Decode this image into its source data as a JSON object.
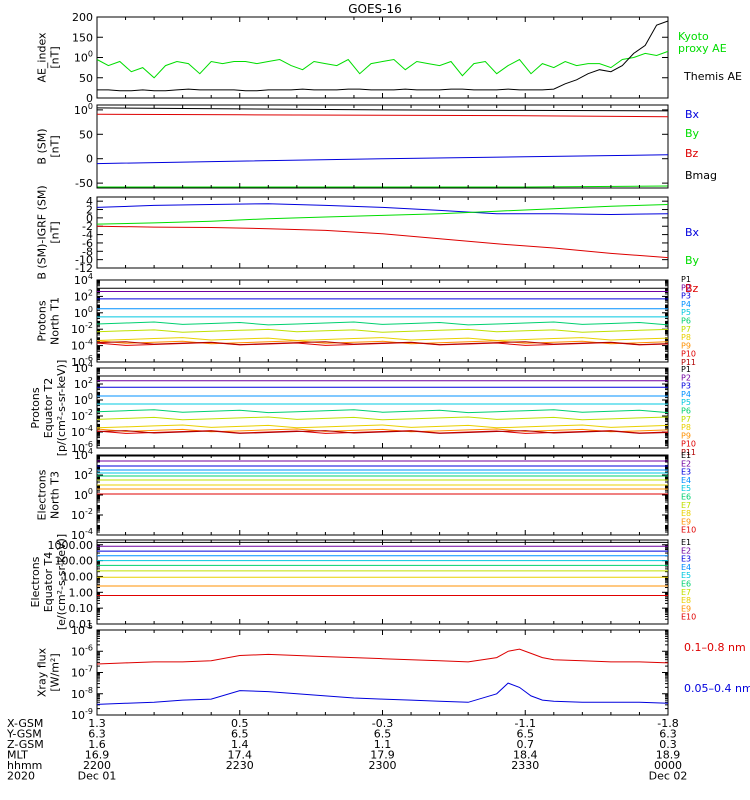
{
  "title": "GOES-16",
  "colors": {
    "black": "#000000",
    "green": "#00dd00",
    "red": "#dd0000",
    "blue": "#0000dd",
    "p1": "#000000",
    "p2": "#7000a0",
    "p3": "#0000dd",
    "p4": "#0090ff",
    "p5": "#00c8e0",
    "p6": "#00d070",
    "p7": "#c0e000",
    "p8": "#e8d000",
    "p9": "#ff9000",
    "p10": "#e00000",
    "p11": "#b00000"
  },
  "chart_data": [
    {
      "id": "ae",
      "type": "line",
      "ylabel": [
        "AE_index",
        "[nT]"
      ],
      "ylim": [
        0,
        200
      ],
      "yticks": [
        "0",
        "50",
        "100",
        "150",
        "200"
      ],
      "ytick_values": [
        0,
        50,
        100,
        150,
        200
      ],
      "x": [
        0,
        0.02,
        0.04,
        0.06,
        0.08,
        0.1,
        0.12,
        0.14,
        0.16,
        0.18,
        0.2,
        0.22,
        0.24,
        0.26,
        0.28,
        0.3,
        0.32,
        0.34,
        0.36,
        0.38,
        0.4,
        0.42,
        0.44,
        0.46,
        0.48,
        0.5,
        0.52,
        0.54,
        0.56,
        0.58,
        0.6,
        0.62,
        0.64,
        0.66,
        0.68,
        0.7,
        0.72,
        0.74,
        0.76,
        0.78,
        0.8,
        0.82,
        0.84,
        0.86,
        0.88,
        0.9,
        0.92,
        0.94,
        0.96,
        0.98,
        1
      ],
      "series": [
        {
          "name": "Kyoto proxy AE",
          "color": "green",
          "values": [
            95,
            80,
            90,
            65,
            75,
            50,
            80,
            90,
            85,
            60,
            90,
            85,
            90,
            90,
            85,
            90,
            95,
            80,
            70,
            90,
            85,
            80,
            95,
            60,
            85,
            90,
            95,
            70,
            90,
            85,
            80,
            90,
            55,
            85,
            90,
            60,
            80,
            95,
            60,
            85,
            75,
            90,
            80,
            85,
            85,
            75,
            95,
            100,
            110,
            105,
            115
          ]
        },
        {
          "name": "Themis AE",
          "color": "black",
          "values": [
            20,
            20,
            18,
            18,
            20,
            18,
            18,
            20,
            22,
            20,
            20,
            20,
            20,
            18,
            18,
            20,
            20,
            20,
            22,
            20,
            20,
            20,
            22,
            22,
            20,
            20,
            20,
            22,
            20,
            20,
            20,
            22,
            22,
            20,
            20,
            20,
            22,
            20,
            20,
            20,
            22,
            35,
            45,
            60,
            70,
            65,
            80,
            110,
            130,
            180,
            190
          ]
        }
      ]
    },
    {
      "id": "bsm",
      "type": "line",
      "ylabel": [
        "B (SM)",
        "[nT]"
      ],
      "ylim": [
        -60,
        110
      ],
      "yticks": [
        "-50",
        "0",
        "50",
        "100"
      ],
      "ytick_values": [
        -50,
        0,
        50,
        100
      ],
      "x": [
        0,
        0.25,
        0.5,
        0.75,
        1
      ],
      "series": [
        {
          "name": "Bx",
          "color": "blue",
          "values": [
            -10,
            -5,
            0,
            4,
            8
          ]
        },
        {
          "name": "By",
          "color": "green",
          "values": [
            -58,
            -58,
            -58,
            -58,
            -56
          ]
        },
        {
          "name": "Bz",
          "color": "red",
          "values": [
            91,
            90,
            89,
            88,
            86
          ]
        },
        {
          "name": "Bmag",
          "color": "black",
          "values": [
            104,
            102,
            100,
            99,
            98
          ]
        }
      ]
    },
    {
      "id": "bigrf",
      "type": "line",
      "ylabel": [
        "B (SM)-IGRF (SM)",
        "[nT]"
      ],
      "ylim": [
        -12,
        5
      ],
      "yticks": [
        "-12",
        "-10",
        "-8",
        "-6",
        "-4",
        "-2",
        "0",
        "2",
        "4"
      ],
      "ytick_values": [
        -12,
        -10,
        -8,
        -6,
        -4,
        -2,
        0,
        2,
        4
      ],
      "x": [
        0,
        0.1,
        0.2,
        0.3,
        0.4,
        0.5,
        0.6,
        0.7,
        0.8,
        0.9,
        1
      ],
      "series": [
        {
          "name": "Bx",
          "color": "blue",
          "values": [
            2.5,
            3.0,
            3.2,
            3.4,
            3.0,
            2.5,
            1.8,
            1.0,
            1.0,
            0.8,
            1.0
          ]
        },
        {
          "name": "By",
          "color": "green",
          "values": [
            -1.5,
            -1.2,
            -0.8,
            -0.2,
            0.2,
            0.6,
            1.0,
            1.6,
            2.2,
            2.8,
            3.2
          ]
        },
        {
          "name": "Bz",
          "color": "red",
          "values": [
            -2.0,
            -2.2,
            -2.3,
            -2.6,
            -3.0,
            -3.8,
            -5.0,
            -6.2,
            -7.2,
            -8.5,
            -9.5
          ]
        }
      ]
    },
    {
      "id": "pt1",
      "type": "line",
      "log": true,
      "ylabel": [
        "Protons",
        "North T1"
      ],
      "ylim_exp": [
        -6,
        4
      ],
      "yticks": [
        "10-6",
        "10-4",
        "10-2",
        "100",
        "102",
        "104"
      ],
      "tick_exps": [
        -6,
        -4,
        -2,
        0,
        2,
        4
      ],
      "series": [
        {
          "name": "P1",
          "color": "p1",
          "value": 3.0
        },
        {
          "name": "P2",
          "color": "p2",
          "value": 2.6
        },
        {
          "name": "P3",
          "color": "p3",
          "value": 1.7
        },
        {
          "name": "P4",
          "color": "p4",
          "value": 0.5
        },
        {
          "name": "P5",
          "color": "p5",
          "value": -0.5
        },
        {
          "name": "P6",
          "color": "p6",
          "value": -1.3
        },
        {
          "name": "P7",
          "color": "p7",
          "value": -2.2
        },
        {
          "name": "P8",
          "color": "p8",
          "value": -3.2
        },
        {
          "name": "P9",
          "color": "p9",
          "value": -3.6
        },
        {
          "name": "P10",
          "color": "p10",
          "value": -3.8
        },
        {
          "name": "P11",
          "color": "p11",
          "value": -3.7
        }
      ]
    },
    {
      "id": "pt2",
      "type": "line",
      "log": true,
      "ylabel": [
        "Protons",
        "Equator T2",
        "[p/(cm²-s-sr-keV)]"
      ],
      "ylim_exp": [
        -6,
        4
      ],
      "yticks": [
        "10-6",
        "10-4",
        "10-2",
        "100",
        "102",
        "104"
      ],
      "tick_exps": [
        -6,
        -4,
        -2,
        0,
        2,
        4
      ],
      "series": [
        {
          "name": "P1",
          "color": "p1",
          "value": 3.0
        },
        {
          "name": "P2",
          "color": "p2",
          "value": 2.4
        },
        {
          "name": "P3",
          "color": "p3",
          "value": 1.6
        },
        {
          "name": "P4",
          "color": "p4",
          "value": 0.5
        },
        {
          "name": "P5",
          "color": "p5",
          "value": -0.5
        },
        {
          "name": "P6",
          "color": "p6",
          "value": -1.4
        },
        {
          "name": "P7",
          "color": "p7",
          "value": -2.3
        },
        {
          "name": "P8",
          "color": "p8",
          "value": -3.3
        },
        {
          "name": "P9",
          "color": "p9",
          "value": -3.8
        },
        {
          "name": "P10",
          "color": "p10",
          "value": -4.0
        },
        {
          "name": "P11",
          "color": "p11",
          "value": -4.0
        }
      ]
    },
    {
      "id": "et3",
      "type": "line",
      "log": true,
      "ylabel": [
        "Electrons",
        "North T3"
      ],
      "ylim_exp": [
        -4,
        4
      ],
      "yticks": [
        "10-4",
        "10-2",
        "100",
        "102",
        "104"
      ],
      "tick_exps": [
        -4,
        -2,
        0,
        2,
        4
      ],
      "series": [
        {
          "name": "E1",
          "color": "p1",
          "value": 3.9
        },
        {
          "name": "E2",
          "color": "p2",
          "value": 3.4
        },
        {
          "name": "E3",
          "color": "p3",
          "value": 2.9
        },
        {
          "name": "E4",
          "color": "p4",
          "value": 2.5
        },
        {
          "name": "E5",
          "color": "p5",
          "value": 2.2
        },
        {
          "name": "E6",
          "color": "p6",
          "value": 1.9
        },
        {
          "name": "E7",
          "color": "p7",
          "value": 1.5
        },
        {
          "name": "E8",
          "color": "p8",
          "value": 1.0
        },
        {
          "name": "E9",
          "color": "p9",
          "value": 0.6
        },
        {
          "name": "E10",
          "color": "p10",
          "value": 0.1
        }
      ]
    },
    {
      "id": "et4",
      "type": "line",
      "log": true,
      "ylabel": [
        "Electrons",
        "Equator T4",
        "[e/(cm²-s-sr-keV)]"
      ],
      "ylim_exp": [
        -2,
        3.3
      ],
      "yticks": [
        "0.01",
        "0.10",
        "1.00",
        "10.00",
        "100.00",
        "1000.00"
      ],
      "tick_exps": [
        -2,
        -1,
        0,
        1,
        2,
        3
      ],
      "series": [
        {
          "name": "E1",
          "color": "p1",
          "value": 3.15
        },
        {
          "name": "E2",
          "color": "p2",
          "value": 2.9
        },
        {
          "name": "E3",
          "color": "p3",
          "value": 2.6
        },
        {
          "name": "E4",
          "color": "p4",
          "value": 2.3
        },
        {
          "name": "E5",
          "color": "p5",
          "value": 2.0
        },
        {
          "name": "E6",
          "color": "p6",
          "value": 1.7
        },
        {
          "name": "E7",
          "color": "p7",
          "value": 1.35
        },
        {
          "name": "E8",
          "color": "p8",
          "value": 0.95
        },
        {
          "name": "E9",
          "color": "p9",
          "value": 0.4
        },
        {
          "name": "E10",
          "color": "p10",
          "value": -0.2
        }
      ]
    },
    {
      "id": "xray",
      "type": "line",
      "log": true,
      "ylabel": [
        "Xray flux",
        "[W/m²]"
      ],
      "ylim_exp": [
        -9,
        -5
      ],
      "yticks": [
        "10-9",
        "10-8",
        "10-7",
        "10-6",
        "10-5"
      ],
      "tick_exps": [
        -9,
        -8,
        -7,
        -6,
        -5
      ],
      "x": [
        0,
        0.05,
        0.1,
        0.15,
        0.2,
        0.25,
        0.3,
        0.35,
        0.4,
        0.45,
        0.5,
        0.55,
        0.6,
        0.65,
        0.7,
        0.72,
        0.74,
        0.76,
        0.78,
        0.8,
        0.85,
        0.9,
        0.95,
        1
      ],
      "series": [
        {
          "name": "0.1–0.8 nm",
          "color": "red",
          "values": [
            -6.6,
            -6.55,
            -6.5,
            -6.5,
            -6.45,
            -6.2,
            -6.15,
            -6.2,
            -6.25,
            -6.3,
            -6.35,
            -6.4,
            -6.45,
            -6.5,
            -6.3,
            -6.0,
            -5.9,
            -6.1,
            -6.3,
            -6.4,
            -6.45,
            -6.5,
            -6.5,
            -6.55
          ]
        },
        {
          "name": "0.05–0.4 nm",
          "color": "blue",
          "values": [
            -8.5,
            -8.45,
            -8.4,
            -8.3,
            -8.25,
            -7.85,
            -7.9,
            -8.0,
            -8.1,
            -8.2,
            -8.25,
            -8.3,
            -8.35,
            -8.4,
            -8.0,
            -7.5,
            -7.7,
            -8.1,
            -8.3,
            -8.35,
            -8.4,
            -8.4,
            -8.4,
            -8.45
          ]
        }
      ]
    }
  ],
  "legends": {
    "ae": [
      "Kyoto",
      "proxy AE",
      "Themis AE"
    ],
    "bsm": [
      "Bx",
      "By",
      "Bz",
      "Bmag"
    ],
    "bigrf": [
      "Bx",
      "By",
      "Bz"
    ],
    "xray": [
      "0.1–0.8 nm",
      "0.05–0.4 nm"
    ]
  },
  "x_axis": {
    "row_labels": [
      "X-GSM",
      "Y-GSM",
      "Z-GSM",
      "MLT",
      "hhmm",
      "2020"
    ],
    "columns": [
      {
        "vals": [
          "1.3",
          "6.3",
          "1.6",
          "16.9",
          "2200",
          "Dec 01"
        ]
      },
      {
        "vals": [
          "0.5",
          "6.5",
          "1.4",
          "17.4",
          "2230",
          ""
        ]
      },
      {
        "vals": [
          "-0.3",
          "6.5",
          "1.1",
          "17.9",
          "2300",
          ""
        ]
      },
      {
        "vals": [
          "-1.1",
          "6.5",
          "0.7",
          "18.4",
          "2330",
          ""
        ]
      },
      {
        "vals": [
          "-1.8",
          "6.3",
          "0.3",
          "18.9",
          "0000",
          "Dec 02"
        ]
      }
    ]
  }
}
